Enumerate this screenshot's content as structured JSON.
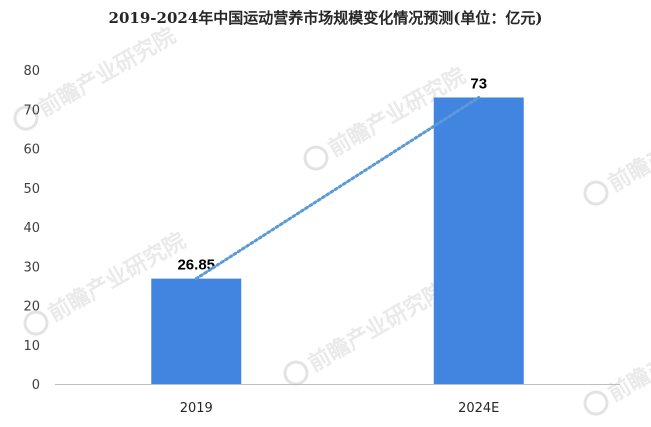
{
  "title": "2019-2024年中国运动营养市场规模变化情况预测(单位：亿元)",
  "watermark": "前瞻产业研究院",
  "colors": {
    "bar": "#4285e0",
    "trend": "#5b9bd5",
    "axis": "#bfbfbf"
  },
  "chart_data": {
    "type": "bar",
    "title": "2019-2024年中国运动营养市场规模变化情况预测(单位：亿元)",
    "categories": [
      "2019",
      "2024E"
    ],
    "values": [
      26.85,
      73
    ],
    "value_labels": [
      "26.85",
      "73"
    ],
    "ylim": [
      0,
      80
    ],
    "yticks": [
      0,
      10,
      20,
      30,
      40,
      50,
      60,
      70,
      80
    ],
    "xlabel": "",
    "ylabel": "",
    "grid": false,
    "trend_line": true
  }
}
